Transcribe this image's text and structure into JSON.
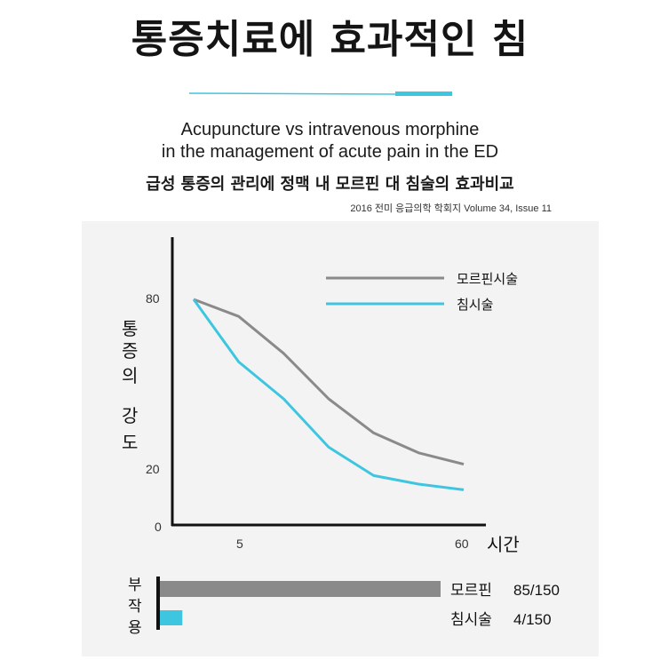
{
  "title": "통증치료에 효과적인 침",
  "subtitle_en": [
    "Acupuncture vs intravenous morphine",
    "in the management of acute pain in the ED"
  ],
  "subtitle_ko": "급성 통증의 관리에 정맥 내 모르핀 대 침술의 효과비교",
  "source": "2016 전미 응급의학 학회지 Volume 34, Issue 11",
  "colors": {
    "morphine": "#8a8a8a",
    "acupuncture": "#3ec6e0",
    "axis": "#111111",
    "panel": "#f3f3f3"
  },
  "chart_data": [
    {
      "type": "line",
      "title": "",
      "xlabel": "시간",
      "ylabel_chars": [
        "통",
        "증",
        "의",
        "강",
        "도"
      ],
      "x_ticks": [
        "5",
        "60"
      ],
      "y_ticks": [
        "80",
        "20",
        "0"
      ],
      "legend": [
        "모르핀시술",
        "침시술"
      ],
      "legend_position": "top-right",
      "grid": false,
      "y_range": [
        0,
        100
      ],
      "series": [
        {
          "name": "모르핀시술",
          "color": "#8a8a8a",
          "x": [
            0,
            1,
            2,
            3,
            4,
            5,
            6
          ],
          "y": [
            80,
            74,
            61,
            45,
            33,
            26,
            22
          ]
        },
        {
          "name": "침시술",
          "color": "#3ec6e0",
          "x": [
            0,
            1,
            2,
            3,
            4,
            5,
            6
          ],
          "y": [
            80,
            58,
            45,
            28,
            18,
            15,
            13
          ]
        }
      ]
    },
    {
      "type": "bar",
      "orientation": "horizontal",
      "ylabel_chars": [
        "부",
        "작",
        "용"
      ],
      "categories": [
        "모르핀",
        "침시술"
      ],
      "values": [
        85,
        4
      ],
      "total": 150,
      "value_labels": [
        "85/150",
        "4/150"
      ],
      "colors": [
        "#8a8a8a",
        "#3ec6e0"
      ]
    }
  ]
}
